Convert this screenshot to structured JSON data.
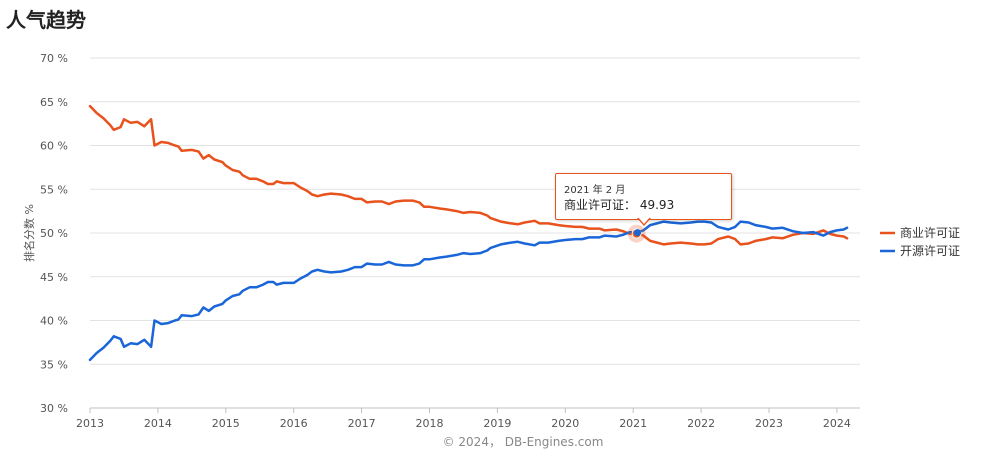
{
  "page": {
    "title": "人气趋势"
  },
  "chart_data": {
    "type": "line",
    "title": "",
    "ylabel": "排名分数 %",
    "ylim": [
      30,
      70
    ],
    "xlim": [
      2013.0,
      2024.25
    ],
    "y_ticks": [
      30,
      35,
      40,
      45,
      50,
      55,
      60,
      65,
      70
    ],
    "y_tick_labels": [
      "30 %",
      "35 %",
      "40 %",
      "45 %",
      "50 %",
      "55 %",
      "60 %",
      "65 %",
      "70 %"
    ],
    "x_ticks": [
      2013,
      2014,
      2015,
      2016,
      2017,
      2018,
      2019,
      2020,
      2021,
      2022,
      2023,
      2024
    ],
    "x_tick_labels": [
      "2013",
      "2014",
      "2015",
      "2016",
      "2017",
      "2018",
      "2019",
      "2020",
      "2021",
      "2022",
      "2023",
      "2024"
    ],
    "grid": true,
    "legend_position": "right",
    "credit": "© 2024， DB-Engines.com",
    "series": [
      {
        "name": "商业许可证",
        "color": "#e8521c",
        "points": [
          [
            2013.0,
            64.5
          ],
          [
            2013.1,
            63.7
          ],
          [
            2013.2,
            63.1
          ],
          [
            2013.3,
            62.3
          ],
          [
            2013.35,
            61.8
          ],
          [
            2013.45,
            62.1
          ],
          [
            2013.5,
            63.0
          ],
          [
            2013.6,
            62.6
          ],
          [
            2013.7,
            62.7
          ],
          [
            2013.8,
            62.2
          ],
          [
            2013.9,
            63.0
          ],
          [
            2013.95,
            60.0
          ],
          [
            2014.05,
            60.4
          ],
          [
            2014.15,
            60.3
          ],
          [
            2014.25,
            60.0
          ],
          [
            2014.3,
            59.9
          ],
          [
            2014.35,
            59.4
          ],
          [
            2014.5,
            59.5
          ],
          [
            2014.6,
            59.3
          ],
          [
            2014.67,
            58.5
          ],
          [
            2014.75,
            58.9
          ],
          [
            2014.83,
            58.4
          ],
          [
            2014.95,
            58.1
          ],
          [
            2015.0,
            57.7
          ],
          [
            2015.1,
            57.2
          ],
          [
            2015.2,
            57.0
          ],
          [
            2015.25,
            56.6
          ],
          [
            2015.35,
            56.2
          ],
          [
            2015.45,
            56.2
          ],
          [
            2015.55,
            55.9
          ],
          [
            2015.62,
            55.6
          ],
          [
            2015.7,
            55.6
          ],
          [
            2015.75,
            55.9
          ],
          [
            2015.85,
            55.7
          ],
          [
            2016.0,
            55.7
          ],
          [
            2016.1,
            55.2
          ],
          [
            2016.2,
            54.8
          ],
          [
            2016.27,
            54.4
          ],
          [
            2016.35,
            54.2
          ],
          [
            2016.45,
            54.4
          ],
          [
            2016.55,
            54.5
          ],
          [
            2016.7,
            54.4
          ],
          [
            2016.8,
            54.2
          ],
          [
            2016.9,
            53.9
          ],
          [
            2017.0,
            53.9
          ],
          [
            2017.08,
            53.5
          ],
          [
            2017.2,
            53.6
          ],
          [
            2017.3,
            53.6
          ],
          [
            2017.4,
            53.3
          ],
          [
            2017.5,
            53.6
          ],
          [
            2017.62,
            53.7
          ],
          [
            2017.75,
            53.7
          ],
          [
            2017.85,
            53.5
          ],
          [
            2017.92,
            53.0
          ],
          [
            2018.0,
            53.0
          ],
          [
            2018.15,
            52.8
          ],
          [
            2018.25,
            52.7
          ],
          [
            2018.4,
            52.5
          ],
          [
            2018.5,
            52.3
          ],
          [
            2018.6,
            52.4
          ],
          [
            2018.75,
            52.3
          ],
          [
            2018.85,
            52.0
          ],
          [
            2018.9,
            51.7
          ],
          [
            2019.05,
            51.3
          ],
          [
            2019.2,
            51.1
          ],
          [
            2019.3,
            51.0
          ],
          [
            2019.4,
            51.2
          ],
          [
            2019.55,
            51.4
          ],
          [
            2019.62,
            51.1
          ],
          [
            2019.75,
            51.1
          ],
          [
            2019.9,
            50.9
          ],
          [
            2020.0,
            50.8
          ],
          [
            2020.15,
            50.7
          ],
          [
            2020.25,
            50.7
          ],
          [
            2020.35,
            50.5
          ],
          [
            2020.5,
            50.5
          ],
          [
            2020.58,
            50.3
          ],
          [
            2020.75,
            50.4
          ],
          [
            2020.85,
            50.2
          ],
          [
            2020.95,
            49.9
          ],
          [
            2021.05,
            49.93
          ],
          [
            2021.15,
            49.7
          ],
          [
            2021.25,
            49.1
          ],
          [
            2021.35,
            48.9
          ],
          [
            2021.45,
            48.7
          ],
          [
            2021.55,
            48.8
          ],
          [
            2021.7,
            48.9
          ],
          [
            2021.85,
            48.8
          ],
          [
            2021.95,
            48.7
          ],
          [
            2022.05,
            48.7
          ],
          [
            2022.15,
            48.8
          ],
          [
            2022.25,
            49.3
          ],
          [
            2022.4,
            49.6
          ],
          [
            2022.5,
            49.3
          ],
          [
            2022.58,
            48.7
          ],
          [
            2022.7,
            48.8
          ],
          [
            2022.8,
            49.1
          ],
          [
            2022.95,
            49.3
          ],
          [
            2023.05,
            49.5
          ],
          [
            2023.2,
            49.4
          ],
          [
            2023.35,
            49.8
          ],
          [
            2023.5,
            50.0
          ],
          [
            2023.65,
            49.9
          ],
          [
            2023.8,
            50.3
          ],
          [
            2023.9,
            49.9
          ],
          [
            2024.0,
            49.7
          ],
          [
            2024.1,
            49.6
          ],
          [
            2024.15,
            49.4
          ]
        ]
      },
      {
        "name": "开源许可证",
        "color": "#1a66d8",
        "points": [
          [
            2013.0,
            35.5
          ],
          [
            2013.1,
            36.3
          ],
          [
            2013.2,
            36.9
          ],
          [
            2013.3,
            37.7
          ],
          [
            2013.35,
            38.2
          ],
          [
            2013.45,
            37.9
          ],
          [
            2013.5,
            37.0
          ],
          [
            2013.6,
            37.4
          ],
          [
            2013.7,
            37.3
          ],
          [
            2013.8,
            37.8
          ],
          [
            2013.9,
            37.0
          ],
          [
            2013.95,
            40.0
          ],
          [
            2014.05,
            39.6
          ],
          [
            2014.15,
            39.7
          ],
          [
            2014.25,
            40.0
          ],
          [
            2014.3,
            40.1
          ],
          [
            2014.35,
            40.6
          ],
          [
            2014.5,
            40.5
          ],
          [
            2014.6,
            40.7
          ],
          [
            2014.67,
            41.5
          ],
          [
            2014.75,
            41.1
          ],
          [
            2014.83,
            41.6
          ],
          [
            2014.95,
            41.9
          ],
          [
            2015.0,
            42.3
          ],
          [
            2015.1,
            42.8
          ],
          [
            2015.2,
            43.0
          ],
          [
            2015.25,
            43.4
          ],
          [
            2015.35,
            43.8
          ],
          [
            2015.45,
            43.8
          ],
          [
            2015.55,
            44.1
          ],
          [
            2015.62,
            44.4
          ],
          [
            2015.7,
            44.4
          ],
          [
            2015.75,
            44.1
          ],
          [
            2015.85,
            44.3
          ],
          [
            2016.0,
            44.3
          ],
          [
            2016.1,
            44.8
          ],
          [
            2016.2,
            45.2
          ],
          [
            2016.27,
            45.6
          ],
          [
            2016.35,
            45.8
          ],
          [
            2016.45,
            45.6
          ],
          [
            2016.55,
            45.5
          ],
          [
            2016.7,
            45.6
          ],
          [
            2016.8,
            45.8
          ],
          [
            2016.9,
            46.1
          ],
          [
            2017.0,
            46.1
          ],
          [
            2017.08,
            46.5
          ],
          [
            2017.2,
            46.4
          ],
          [
            2017.3,
            46.4
          ],
          [
            2017.4,
            46.7
          ],
          [
            2017.5,
            46.4
          ],
          [
            2017.62,
            46.3
          ],
          [
            2017.75,
            46.3
          ],
          [
            2017.85,
            46.5
          ],
          [
            2017.92,
            47.0
          ],
          [
            2018.0,
            47.0
          ],
          [
            2018.15,
            47.2
          ],
          [
            2018.25,
            47.3
          ],
          [
            2018.4,
            47.5
          ],
          [
            2018.5,
            47.7
          ],
          [
            2018.6,
            47.6
          ],
          [
            2018.75,
            47.7
          ],
          [
            2018.85,
            48.0
          ],
          [
            2018.9,
            48.3
          ],
          [
            2019.05,
            48.7
          ],
          [
            2019.2,
            48.9
          ],
          [
            2019.3,
            49.0
          ],
          [
            2019.4,
            48.8
          ],
          [
            2019.55,
            48.6
          ],
          [
            2019.62,
            48.9
          ],
          [
            2019.75,
            48.9
          ],
          [
            2019.9,
            49.1
          ],
          [
            2020.0,
            49.2
          ],
          [
            2020.15,
            49.3
          ],
          [
            2020.25,
            49.3
          ],
          [
            2020.35,
            49.5
          ],
          [
            2020.5,
            49.5
          ],
          [
            2020.58,
            49.7
          ],
          [
            2020.75,
            49.6
          ],
          [
            2020.85,
            49.8
          ],
          [
            2020.95,
            50.1
          ],
          [
            2021.05,
            50.07
          ],
          [
            2021.15,
            50.3
          ],
          [
            2021.25,
            50.9
          ],
          [
            2021.35,
            51.1
          ],
          [
            2021.45,
            51.3
          ],
          [
            2021.55,
            51.2
          ],
          [
            2021.7,
            51.1
          ],
          [
            2021.85,
            51.2
          ],
          [
            2021.95,
            51.3
          ],
          [
            2022.05,
            51.3
          ],
          [
            2022.15,
            51.2
          ],
          [
            2022.25,
            50.7
          ],
          [
            2022.4,
            50.4
          ],
          [
            2022.5,
            50.7
          ],
          [
            2022.58,
            51.3
          ],
          [
            2022.7,
            51.2
          ],
          [
            2022.8,
            50.9
          ],
          [
            2022.95,
            50.7
          ],
          [
            2023.05,
            50.5
          ],
          [
            2023.2,
            50.6
          ],
          [
            2023.35,
            50.2
          ],
          [
            2023.5,
            50.0
          ],
          [
            2023.65,
            50.1
          ],
          [
            2023.8,
            49.7
          ],
          [
            2023.9,
            50.1
          ],
          [
            2024.0,
            50.3
          ],
          [
            2024.1,
            50.4
          ],
          [
            2024.15,
            50.6
          ]
        ]
      }
    ],
    "tooltip": {
      "date": "2021 年 2 月",
      "series_label": "商业许可证：",
      "value": "49.93",
      "x": 2021.05,
      "y": 49.93
    }
  }
}
